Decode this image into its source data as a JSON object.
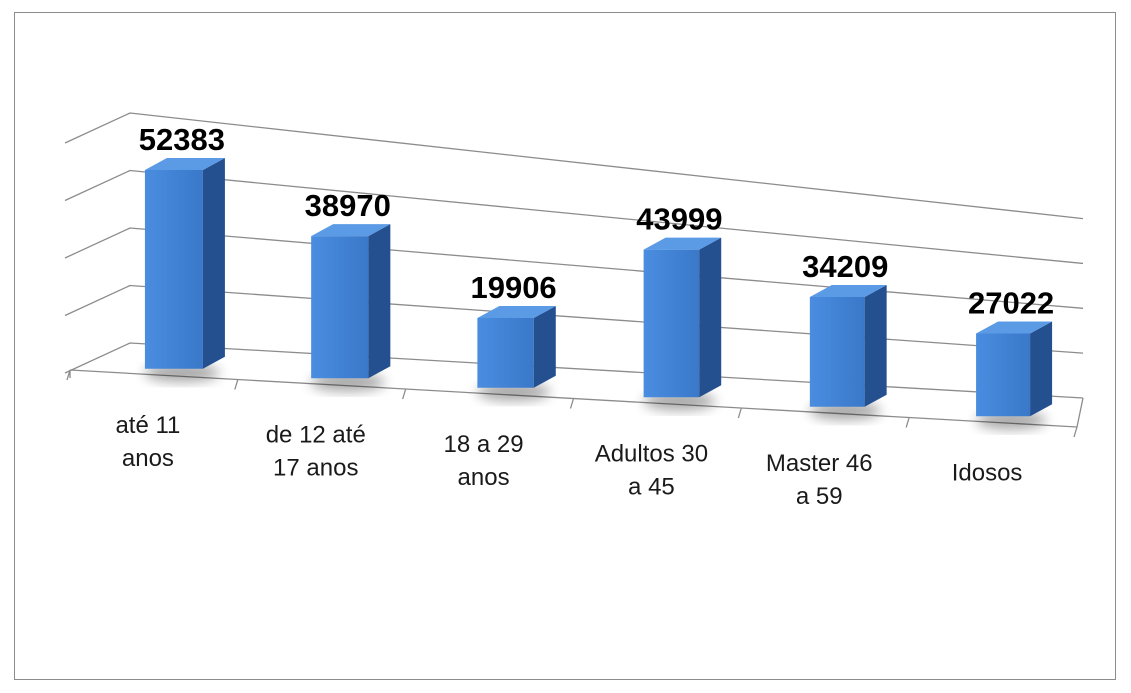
{
  "chart_data": {
    "type": "bar",
    "style": "3d-column",
    "title": "",
    "xlabel": "",
    "ylabel": "",
    "categories": [
      [
        "até 11",
        "anos"
      ],
      [
        "de 12 até",
        "17 anos"
      ],
      [
        "18 a 29",
        "anos"
      ],
      [
        "Adultos 30",
        "a 45"
      ],
      [
        "Master 46",
        "a 59"
      ],
      [
        "Idosos"
      ]
    ],
    "values": [
      52383,
      38970,
      19906,
      43999,
      34209,
      27022
    ],
    "ylim": [
      0,
      60000
    ],
    "gridlines": true,
    "legend": "none",
    "colors": {
      "front": "#3a78c9",
      "front_light": "#4a8de0",
      "side": "#24508f",
      "top": "#5b9be6",
      "grid": "#8c8c8c"
    }
  }
}
